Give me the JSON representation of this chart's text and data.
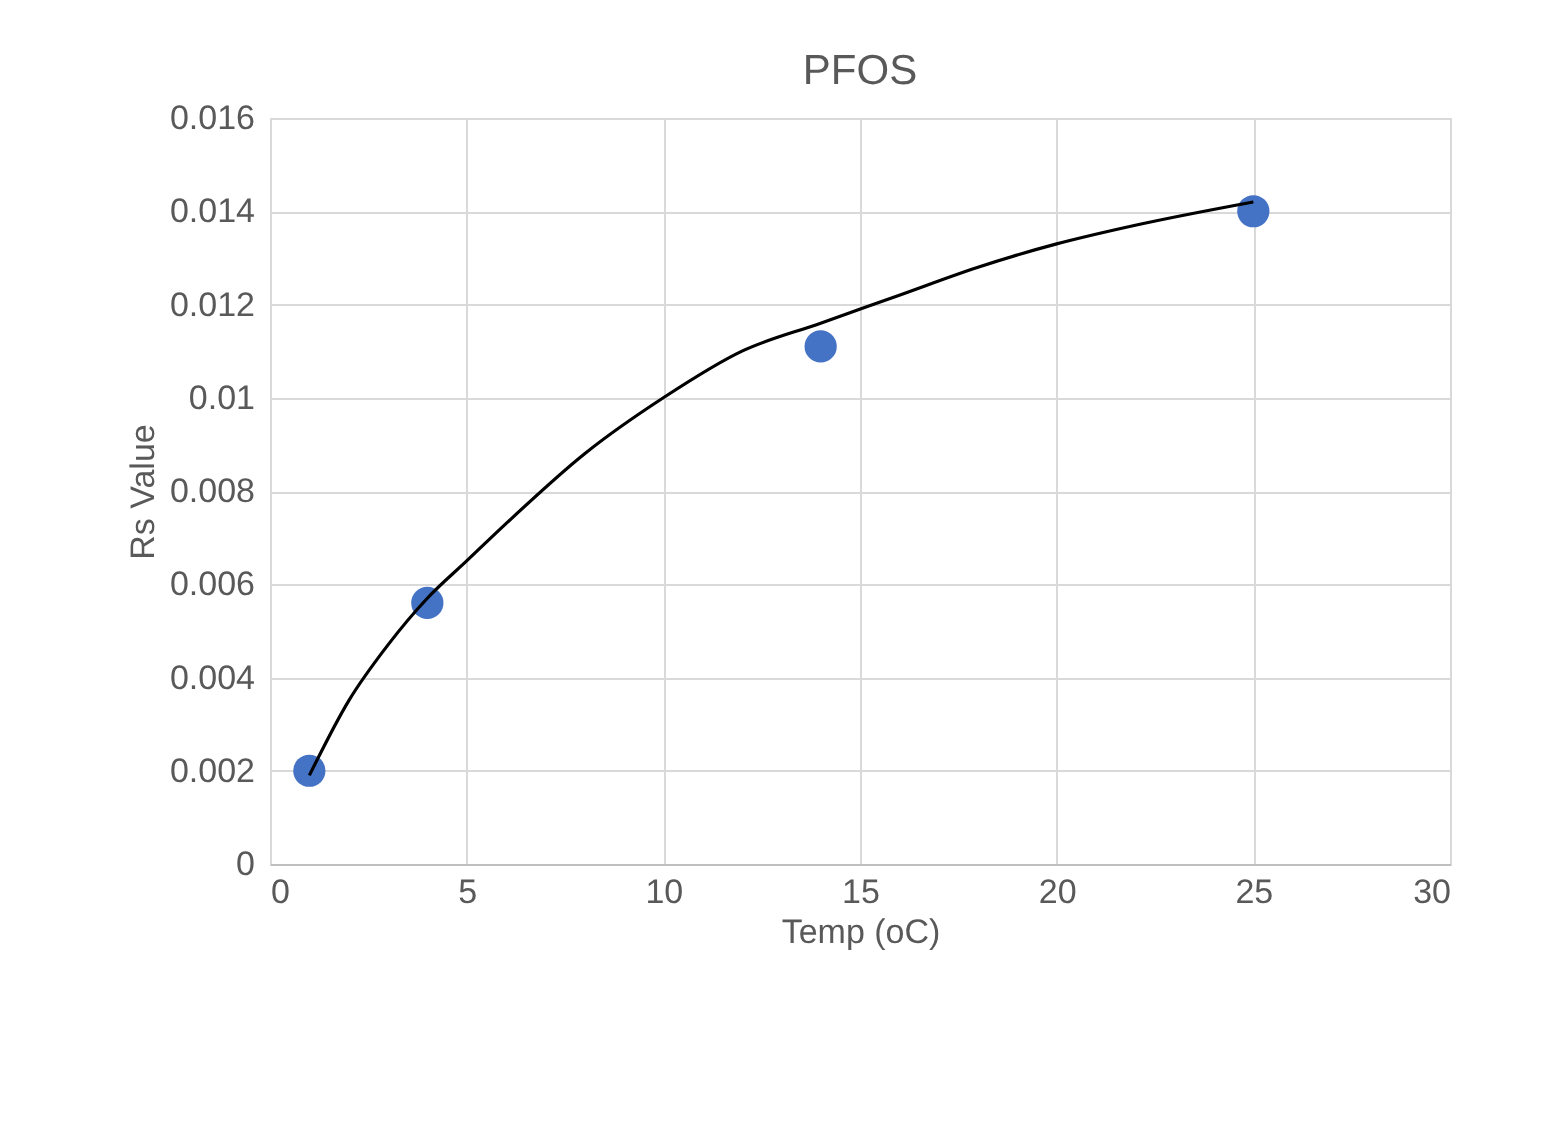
{
  "chart_data": {
    "type": "scatter",
    "title": "PFOS",
    "xlabel": "Temp (oC)",
    "ylabel": "Rs Value",
    "x": [
      1,
      4,
      14,
      25
    ],
    "series": [
      {
        "color": "#4472c4",
        "values": [
          0.002,
          0.0056,
          0.0111,
          0.014
        ],
        "marker": "circle"
      },
      {
        "type": "line",
        "color": "#000000",
        "x": [
          1,
          2,
          3,
          4,
          5,
          6,
          8,
          10,
          12,
          14,
          16,
          18,
          20,
          22,
          25
        ],
        "values": [
          0.0019,
          0.0035,
          0.0047,
          0.0057,
          0.0065,
          0.0073,
          0.0088,
          0.01,
          0.011,
          0.0116,
          0.0122,
          0.0128,
          0.0133,
          0.0137,
          0.0142
        ],
        "line_style": "solid",
        "marker": "none"
      }
    ],
    "xlim": [
      0,
      30
    ],
    "xticks": [
      0,
      5,
      10,
      15,
      20,
      25,
      30
    ],
    "ylim": [
      0,
      0.016
    ],
    "yticks": [
      0,
      0.002,
      0.004,
      0.006,
      0.008,
      0.01,
      0.012,
      0.014,
      0.016
    ],
    "grid": true
  }
}
